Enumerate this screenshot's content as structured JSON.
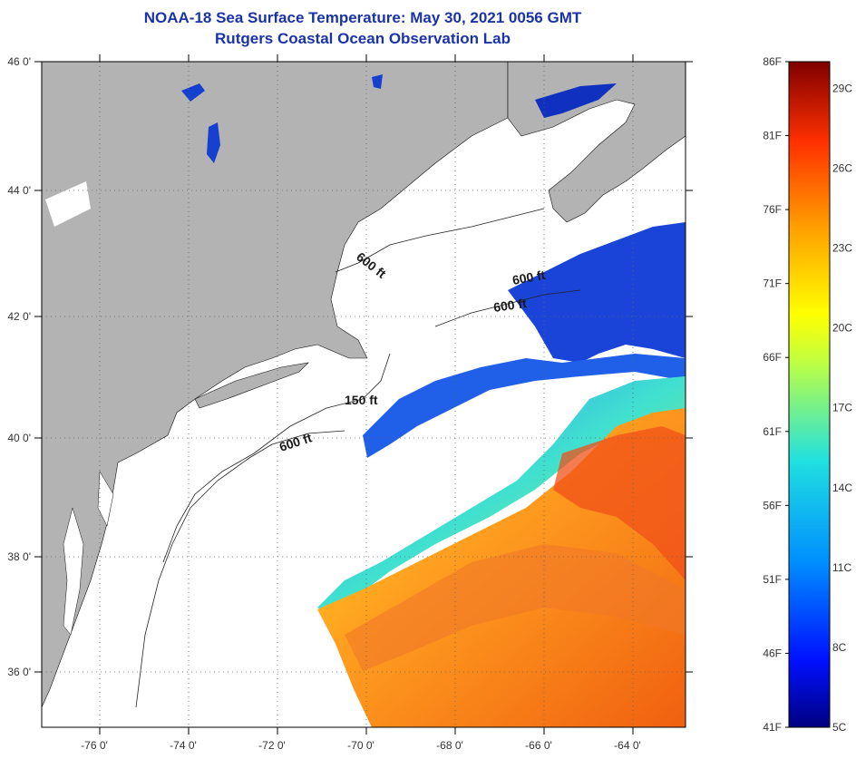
{
  "header": {
    "title": "NOAA-18 Sea Surface Temperature:  May 30, 2021 0056 GMT",
    "subtitle": "Rutgers Coastal Ocean Observation Lab"
  },
  "map": {
    "lat_labels": [
      "46 0'",
      "44 0'",
      "42 0'",
      "40 0'",
      "38 0'",
      "36 0'"
    ],
    "lon_labels": [
      "-76 0'",
      "-74 0'",
      "-72 0'",
      "-70 0'",
      "-68 0'",
      "-66 0'",
      "-64 0'"
    ],
    "contour_labels": [
      "600 ft",
      "600 ft",
      "600 ft",
      "150 ft",
      "600 ft"
    ],
    "colors": {
      "land": "#b3b3b3",
      "ocean_nodata": "#ffffff",
      "cold": "#1030c0",
      "warm": "#f07020"
    }
  },
  "colorbar": {
    "fahrenheit_labels": [
      "86F",
      "81F",
      "76F",
      "71F",
      "66F",
      "61F",
      "56F",
      "51F",
      "46F",
      "41F"
    ],
    "celsius_labels": [
      "29C",
      "26C",
      "23C",
      "20C",
      "17C",
      "14C",
      "11C",
      "8C",
      "5C"
    ],
    "colors": [
      "#00007f",
      "#0000ff",
      "#00b0ff",
      "#30e0c0",
      "#c0ff40",
      "#ffff00",
      "#ffb000",
      "#ff5000",
      "#d00000",
      "#7f0000"
    ]
  }
}
